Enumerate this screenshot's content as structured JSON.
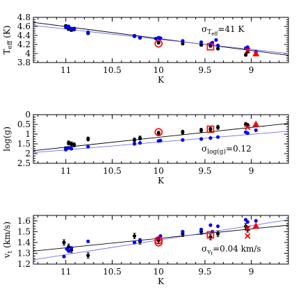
{
  "chart_data": [
    {
      "type": "scatter",
      "id": "teff",
      "xlabel": "K",
      "ylabel_main": "T",
      "ylabel_sub": "eff",
      "ylabel_unit": " (K)",
      "xlim": [
        11.35,
        8.6
      ],
      "ylim": [
        3.8,
        4.8
      ],
      "xticks": [
        11,
        10.5,
        10,
        9.5,
        9
      ],
      "xtick_labels": [
        "11",
        "10.5",
        "10",
        "9.5",
        "9"
      ],
      "yticks": [
        3.8,
        4.0,
        4.2,
        4.4,
        4.6,
        4.8
      ],
      "ytick_labels": [
        "3.8",
        "4",
        "4.2",
        "4.4",
        "4.6",
        "4.8"
      ],
      "annotation": {
        "prefix": "σ",
        "sub": "T",
        "subsub": "eff",
        "value": "=41  K"
      },
      "series": [
        {
          "color": "#000000",
          "marker": "dot",
          "errorbars": true,
          "x": [
            11.0,
            10.97,
            10.94,
            10.91,
            10.76,
            10.26,
            10.2,
            10.0,
            9.74,
            9.54,
            9.44,
            9.36,
            9.06,
            9.04
          ],
          "y": [
            4.61,
            4.54,
            4.52,
            4.55,
            4.45,
            4.39,
            4.35,
            4.24,
            4.22,
            4.19,
            4.17,
            4.11,
            3.97,
            4.04
          ],
          "yerr": [
            0.03,
            0.03,
            0.03,
            0.03,
            0.03,
            0.03,
            0.03,
            0.03,
            0.03,
            0.03,
            0.03,
            0.03,
            0.03,
            0.03
          ]
        },
        {
          "color": "#0000ff",
          "marker": "dot",
          "errorbars": false,
          "x": [
            11.0,
            10.97,
            10.94,
            10.91,
            10.76,
            10.26,
            10.2,
            10.03,
            10.0,
            9.98,
            9.74,
            9.54,
            9.44,
            9.42,
            9.38,
            9.36,
            9.06,
            9.04,
            8.95
          ],
          "y": [
            4.58,
            4.6,
            4.55,
            4.53,
            4.47,
            4.38,
            4.35,
            4.33,
            4.35,
            4.34,
            4.28,
            4.25,
            4.21,
            4.24,
            4.3,
            4.18,
            4.12,
            4.14,
            4.04
          ]
        },
        {
          "color": "#ff0000",
          "marker": "circle",
          "x": [
            10.0
          ],
          "y": [
            4.22
          ]
        },
        {
          "color": "#ff0000",
          "marker": "square",
          "x": [
            9.44
          ],
          "y": [
            4.15
          ]
        },
        {
          "color": "#ff0000",
          "marker": "x",
          "x": [
            9.04
          ],
          "y": [
            4.07
          ]
        },
        {
          "color": "#ff0000",
          "marker": "triangle",
          "x": [
            8.95
          ],
          "y": [
            3.99
          ]
        }
      ],
      "fits": [
        {
          "color": "#000000",
          "x": [
            11.35,
            8.6
          ],
          "y": [
            4.69,
            3.96
          ]
        },
        {
          "color": "#6b6bff",
          "x": [
            11.35,
            8.6
          ],
          "y": [
            4.62,
            4.0
          ]
        }
      ]
    },
    {
      "type": "scatter",
      "id": "logg",
      "xlabel": "K",
      "ylabel_main": "log(g)",
      "ylabel_sub": "",
      "ylabel_unit": "",
      "xlim": [
        11.35,
        8.6
      ],
      "ylim": [
        2.5,
        0.0
      ],
      "xticks": [
        11,
        10.5,
        10,
        9.5,
        9
      ],
      "xtick_labels": [
        "11",
        "10.5",
        "10",
        "9.5",
        "9"
      ],
      "yticks": [
        0.0,
        0.5,
        1.0,
        1.5,
        2.0,
        2.5
      ],
      "ytick_labels": [
        "0",
        "0.5",
        "1",
        "1.5",
        "2",
        "2.5"
      ],
      "annotation": {
        "prefix": "σ",
        "sub": "log(g)",
        "subsub": "",
        "value": "=0.12"
      },
      "series": [
        {
          "color": "#000000",
          "marker": "dot",
          "errorbars": true,
          "x": [
            11.0,
            10.97,
            10.94,
            10.91,
            10.76,
            10.26,
            10.2,
            10.0,
            9.74,
            9.54,
            9.44,
            9.36,
            9.06,
            9.04
          ],
          "y": [
            1.75,
            1.45,
            1.5,
            1.55,
            1.25,
            1.3,
            1.2,
            0.95,
            0.9,
            0.8,
            0.75,
            0.65,
            0.5,
            0.55
          ],
          "yerr": [
            0.1,
            0.1,
            0.1,
            0.1,
            0.1,
            0.1,
            0.1,
            0.1,
            0.1,
            0.1,
            0.1,
            0.1,
            0.1,
            0.1
          ]
        },
        {
          "color": "#0000ff",
          "marker": "dot",
          "errorbars": false,
          "x": [
            11.0,
            10.97,
            10.94,
            10.76,
            10.26,
            10.2,
            10.0,
            9.98,
            9.74,
            9.54,
            9.44,
            9.36,
            9.06,
            9.04,
            8.95
          ],
          "y": [
            1.8,
            1.7,
            1.75,
            1.65,
            1.5,
            1.45,
            1.35,
            1.33,
            1.3,
            1.25,
            1.2,
            1.15,
            0.9,
            0.95,
            0.8
          ]
        },
        {
          "color": "#ff0000",
          "marker": "circle",
          "x": [
            10.0
          ],
          "y": [
            0.9
          ]
        },
        {
          "color": "#ff0000",
          "marker": "square",
          "x": [
            9.44
          ],
          "y": [
            0.75
          ]
        },
        {
          "color": "#ff0000",
          "marker": "x",
          "x": [
            9.04
          ],
          "y": [
            0.65
          ]
        },
        {
          "color": "#ff0000",
          "marker": "triangle",
          "x": [
            8.95
          ],
          "y": [
            0.5
          ]
        }
      ],
      "fits": [
        {
          "color": "#000000",
          "x": [
            11.35,
            8.6
          ],
          "y": [
            1.85,
            0.45
          ]
        },
        {
          "color": "#6b6bff",
          "x": [
            11.35,
            8.6
          ],
          "y": [
            1.95,
            0.85
          ]
        }
      ]
    },
    {
      "type": "scatter",
      "id": "vt",
      "xlabel": "K",
      "ylabel_main": "v",
      "ylabel_sub": "t",
      "ylabel_unit": " (km/s)",
      "xlim": [
        11.35,
        8.6
      ],
      "ylim": [
        1.2,
        1.65
      ],
      "xticks": [
        11,
        10.5,
        10,
        9.5,
        9
      ],
      "xtick_labels": [
        "11",
        "10.5",
        "10",
        "9.5",
        "9"
      ],
      "yticks": [
        1.2,
        1.3,
        1.4,
        1.5,
        1.6
      ],
      "ytick_labels": [
        "1.2",
        "1.3",
        "1.4",
        "1.5",
        "1.6"
      ],
      "annotation": {
        "prefix": "σ",
        "sub": "v",
        "subsub": "t",
        "value": "=0.04  km/s"
      },
      "series": [
        {
          "color": "#000000",
          "marker": "dot",
          "errorbars": true,
          "x": [
            11.02,
            10.97,
            10.94,
            10.76,
            10.26,
            10.2,
            10.0,
            9.74,
            9.54,
            9.44,
            9.36,
            9.06,
            9.04
          ],
          "y": [
            1.4,
            1.36,
            1.33,
            1.28,
            1.46,
            1.41,
            1.42,
            1.48,
            1.5,
            1.45,
            1.48,
            1.55,
            1.52
          ],
          "yerr": [
            0.025,
            0.025,
            0.025,
            0.025,
            0.025,
            0.025,
            0.025,
            0.025,
            0.025,
            0.025,
            0.025,
            0.025,
            0.025
          ]
        },
        {
          "color": "#0000ff",
          "marker": "dot",
          "errorbars": false,
          "x": [
            11.02,
            10.99,
            10.97,
            10.94,
            10.76,
            10.26,
            10.2,
            10.0,
            9.98,
            9.74,
            9.54,
            9.44,
            9.42,
            9.36,
            9.06,
            9.04,
            8.95
          ],
          "y": [
            1.27,
            1.34,
            1.32,
            1.35,
            1.41,
            1.4,
            1.42,
            1.44,
            1.46,
            1.5,
            1.52,
            1.56,
            1.5,
            1.55,
            1.61,
            1.59,
            1.6
          ]
        },
        {
          "color": "#ff0000",
          "marker": "circle",
          "x": [
            10.0,
            10.0
          ],
          "y": [
            1.4,
            1.42
          ]
        },
        {
          "color": "#ff0000",
          "marker": "square",
          "x": [
            9.44
          ],
          "y": [
            1.47
          ]
        },
        {
          "color": "#ff0000",
          "marker": "x",
          "x": [
            9.04,
            9.04
          ],
          "y": [
            1.53,
            1.46
          ]
        },
        {
          "color": "#ff0000",
          "marker": "triangle",
          "x": [
            8.95
          ],
          "y": [
            1.55
          ]
        }
      ],
      "fits": [
        {
          "color": "#000000",
          "x": [
            11.35,
            8.6
          ],
          "y": [
            1.32,
            1.56
          ]
        },
        {
          "color": "#6b6bff",
          "x": [
            11.35,
            8.6
          ],
          "y": [
            1.24,
            1.61
          ]
        }
      ]
    }
  ]
}
